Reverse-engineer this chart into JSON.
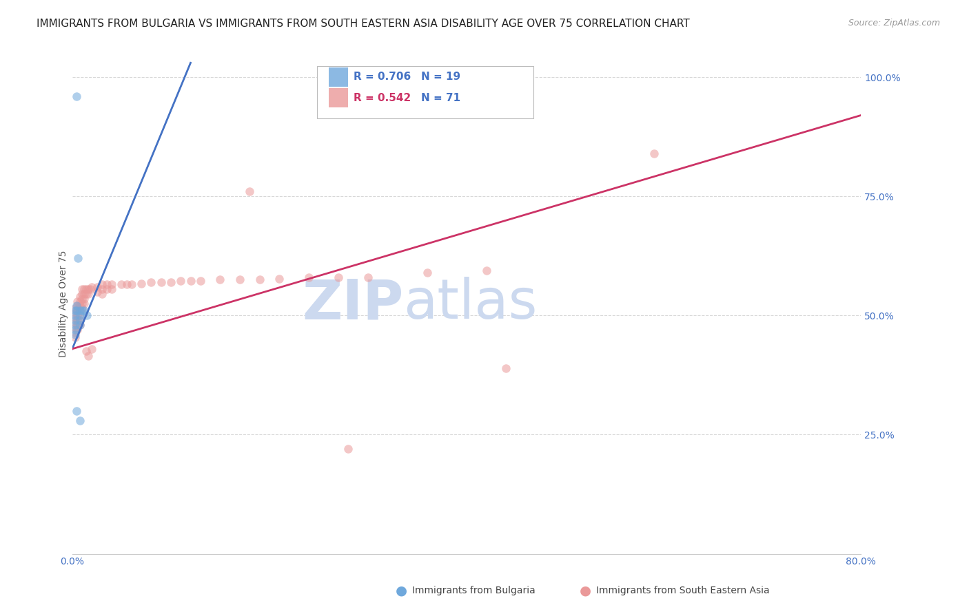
{
  "title": "IMMIGRANTS FROM BULGARIA VS IMMIGRANTS FROM SOUTH EASTERN ASIA DISABILITY AGE OVER 75 CORRELATION CHART",
  "source": "Source: ZipAtlas.com",
  "ylabel": "Disability Age Over 75",
  "xlim": [
    0.0,
    0.8
  ],
  "ylim": [
    0.0,
    1.05
  ],
  "yticks_right": [
    0.25,
    0.5,
    0.75,
    1.0
  ],
  "ytick_labels_right": [
    "25.0%",
    "50.0%",
    "75.0%",
    "100.0%"
  ],
  "xticks": [
    0.0,
    0.1,
    0.2,
    0.3,
    0.4,
    0.5,
    0.6,
    0.7,
    0.8
  ],
  "xtick_labels": [
    "0.0%",
    "",
    "",
    "",
    "",
    "",
    "",
    "",
    "80.0%"
  ],
  "bg_color": "#ffffff",
  "grid_color": "#d8d8d8",
  "title_color": "#222222",
  "right_axis_color": "#4472c4",
  "watermark_zip": "ZIP",
  "watermark_atlas": "atlas",
  "watermark_color": "#ccd9ef",
  "legend_R_bulgaria": "R = 0.706",
  "legend_N_bulgaria": "N = 19",
  "legend_R_sea": "R = 0.542",
  "legend_N_sea": "N = 71",
  "legend_label_bulgaria": "Immigrants from Bulgaria",
  "legend_label_sea": "Immigrants from South Eastern Asia",
  "bulgaria_color": "#6fa8dc",
  "sea_color": "#ea9999",
  "bulgaria_line_color": "#4472c4",
  "sea_line_color": "#cc3366",
  "bulgaria_scatter": [
    [
      0.003,
      0.51
    ],
    [
      0.003,
      0.5
    ],
    [
      0.003,
      0.49
    ],
    [
      0.003,
      0.48
    ],
    [
      0.003,
      0.47
    ],
    [
      0.003,
      0.46
    ],
    [
      0.004,
      0.52
    ],
    [
      0.004,
      0.51
    ],
    [
      0.006,
      0.62
    ],
    [
      0.008,
      0.51
    ],
    [
      0.008,
      0.5
    ],
    [
      0.008,
      0.49
    ],
    [
      0.008,
      0.48
    ],
    [
      0.01,
      0.51
    ],
    [
      0.012,
      0.51
    ],
    [
      0.015,
      0.5
    ],
    [
      0.004,
      0.3
    ],
    [
      0.008,
      0.28
    ],
    [
      0.004,
      0.96
    ]
  ],
  "sea_scatter": [
    [
      0.003,
      0.515
    ],
    [
      0.003,
      0.505
    ],
    [
      0.003,
      0.495
    ],
    [
      0.003,
      0.485
    ],
    [
      0.003,
      0.475
    ],
    [
      0.003,
      0.465
    ],
    [
      0.003,
      0.455
    ],
    [
      0.005,
      0.53
    ],
    [
      0.005,
      0.52
    ],
    [
      0.005,
      0.51
    ],
    [
      0.005,
      0.5
    ],
    [
      0.005,
      0.49
    ],
    [
      0.005,
      0.48
    ],
    [
      0.005,
      0.47
    ],
    [
      0.008,
      0.54
    ],
    [
      0.008,
      0.53
    ],
    [
      0.008,
      0.52
    ],
    [
      0.008,
      0.51
    ],
    [
      0.008,
      0.5
    ],
    [
      0.008,
      0.49
    ],
    [
      0.008,
      0.48
    ],
    [
      0.01,
      0.555
    ],
    [
      0.01,
      0.545
    ],
    [
      0.01,
      0.535
    ],
    [
      0.01,
      0.525
    ],
    [
      0.01,
      0.515
    ],
    [
      0.012,
      0.555
    ],
    [
      0.012,
      0.545
    ],
    [
      0.012,
      0.535
    ],
    [
      0.012,
      0.525
    ],
    [
      0.014,
      0.555
    ],
    [
      0.014,
      0.545
    ],
    [
      0.014,
      0.425
    ],
    [
      0.016,
      0.555
    ],
    [
      0.016,
      0.545
    ],
    [
      0.016,
      0.415
    ],
    [
      0.018,
      0.555
    ],
    [
      0.02,
      0.56
    ],
    [
      0.02,
      0.43
    ],
    [
      0.025,
      0.56
    ],
    [
      0.025,
      0.55
    ],
    [
      0.03,
      0.565
    ],
    [
      0.03,
      0.555
    ],
    [
      0.03,
      0.545
    ],
    [
      0.035,
      0.565
    ],
    [
      0.035,
      0.555
    ],
    [
      0.04,
      0.565
    ],
    [
      0.04,
      0.555
    ],
    [
      0.05,
      0.565
    ],
    [
      0.055,
      0.565
    ],
    [
      0.06,
      0.565
    ],
    [
      0.07,
      0.567
    ],
    [
      0.08,
      0.57
    ],
    [
      0.09,
      0.57
    ],
    [
      0.1,
      0.57
    ],
    [
      0.11,
      0.572
    ],
    [
      0.12,
      0.572
    ],
    [
      0.13,
      0.572
    ],
    [
      0.15,
      0.575
    ],
    [
      0.17,
      0.575
    ],
    [
      0.19,
      0.575
    ],
    [
      0.21,
      0.577
    ],
    [
      0.24,
      0.58
    ],
    [
      0.27,
      0.58
    ],
    [
      0.3,
      0.58
    ],
    [
      0.36,
      0.59
    ],
    [
      0.42,
      0.595
    ],
    [
      0.18,
      0.76
    ],
    [
      0.44,
      0.39
    ],
    [
      0.28,
      0.22
    ],
    [
      0.59,
      0.84
    ]
  ],
  "bulgaria_trend_x": [
    0.0,
    0.12
  ],
  "bulgaria_trend_y": [
    0.43,
    1.03
  ],
  "sea_trend_x": [
    0.0,
    0.8
  ],
  "sea_trend_y": [
    0.43,
    0.92
  ],
  "marker_size": 9,
  "marker_alpha": 0.55,
  "title_fontsize": 11,
  "source_fontsize": 9,
  "axis_label_fontsize": 10,
  "tick_fontsize": 10,
  "legend_fontsize": 11
}
